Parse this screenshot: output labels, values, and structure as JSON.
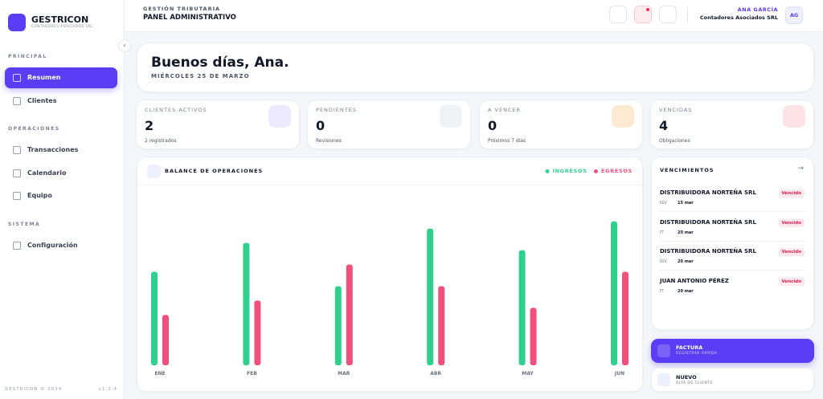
{
  "sidebar": {
    "brand": "GESTRICON",
    "brand_sub": "CONTADORES ASOCIADOS SRL",
    "sections": [
      {
        "title": "PRINCIPAL",
        "items": [
          "Resumen",
          "Clientes"
        ]
      },
      {
        "title": "OPERACIONES",
        "items": [
          "Transacciones",
          "Calendario",
          "Equipo"
        ]
      },
      {
        "title": "SISTEMA",
        "items": [
          "Configuración"
        ]
      }
    ],
    "footer": "GESTRICON © 2024",
    "version": "v1.2.4"
  },
  "header": {
    "eyebrow": "GESTIÓN TRIBUTARIA",
    "title": "PANEL ADMINISTRATIVO",
    "user_name": "ANA GARCÍA",
    "user_company": "Contadores Asociados SRL",
    "avatar": "AG"
  },
  "greeting": {
    "title": "Buenos días, Ana.",
    "date": "MIÉRCOLES 25 DE MARZO"
  },
  "stats": [
    {
      "label": "CLIENTES ACTIVOS",
      "value": 2,
      "note": "2 registrados"
    },
    {
      "label": "PENDIENTES",
      "value": 0,
      "note": "Revisiones"
    },
    {
      "label": "A VENCER",
      "value": 0,
      "note": "Próximos 7 días"
    },
    {
      "label": "VENCIDAS",
      "value": 4,
      "note": "Obligaciones"
    }
  ],
  "chart_data": {
    "type": "bar",
    "title": "BALANCE DE OPERACIONES",
    "categories": [
      "ENE",
      "FEB",
      "MAR",
      "ABR",
      "MAY",
      "JUN"
    ],
    "series": [
      {
        "name": "INGRESOS",
        "color": "#2fcf8e",
        "values": [
          52,
          68,
          44,
          76,
          64,
          80
        ]
      },
      {
        "name": "EGRESOS",
        "color": "#f2507c",
        "values": [
          28,
          36,
          56,
          44,
          32,
          52
        ]
      }
    ],
    "ylim": [
      0,
      100
    ]
  },
  "deadlines": {
    "title": "VENCIMIENTOS",
    "items": [
      {
        "name": "DISTRIBUIDORA NORTEÑA SRL",
        "type": "IGV",
        "date": "15 mar",
        "status": "Vencido"
      },
      {
        "name": "DISTRIBUIDORA NORTEÑA SRL",
        "type": "IT",
        "date": "20 mar",
        "status": "Vencido"
      },
      {
        "name": "DISTRIBUIDORA NORTEÑA SRL",
        "type": "IGV",
        "date": "20 mar",
        "status": "Vencido"
      },
      {
        "name": "JUAN ANTONIO PÉREZ",
        "type": "IT",
        "date": "20 mar",
        "status": "Vencido"
      }
    ]
  },
  "actions": [
    {
      "title": "FACTURA",
      "subtitle": "REGISTRAR RÁPIDA"
    },
    {
      "title": "NUEVO",
      "subtitle": "ALTA DE CLIENTE"
    }
  ]
}
